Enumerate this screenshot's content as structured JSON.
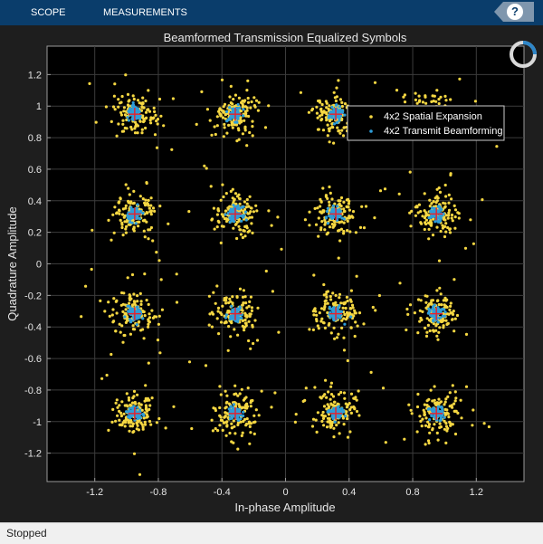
{
  "toolbar": {
    "tabs": [
      {
        "label": "SCOPE"
      },
      {
        "label": "MEASUREMENTS"
      }
    ],
    "help_label": "?"
  },
  "status": {
    "text": "Stopped"
  },
  "colors": {
    "background": "#1e1e1e",
    "axes_background": "#000000",
    "toolbar": "#0a3d6b",
    "series1": "#f5d742",
    "series2": "#2e9cd8",
    "reference": "#e8202a",
    "grid": "#3c3c3c",
    "text": "#e6e6e6"
  },
  "chart_data": {
    "type": "scatter",
    "title": "Beamformed Transmission Equalized Symbols",
    "xlabel": "In-phase Amplitude",
    "ylabel": "Quadrature Amplitude",
    "xlim": [
      -1.5,
      1.5
    ],
    "ylim": [
      -1.38,
      1.38
    ],
    "xticks": [
      -1.2,
      -0.8,
      -0.4,
      0,
      0.4,
      0.8,
      1.2
    ],
    "xtick_labels": [
      "-1.2",
      "-0.8",
      "-0.4",
      "0",
      "0.4",
      "0.8",
      "1.2"
    ],
    "yticks": [
      -1.2,
      -1,
      -0.8,
      -0.6,
      -0.4,
      -0.2,
      0,
      0.2,
      0.4,
      0.6,
      0.8,
      1,
      1.2
    ],
    "ytick_labels": [
      "-1.2",
      "-1",
      "-0.8",
      "-0.6",
      "-0.4",
      "-0.2",
      "0",
      "0.2",
      "0.4",
      "0.6",
      "0.8",
      "1",
      "1.2"
    ],
    "grid": true,
    "legend_position": "top-right",
    "reference_constellation": {
      "levels": [
        -0.9487,
        -0.3162,
        0.3162,
        0.9487
      ]
    },
    "series": [
      {
        "name": "4x2 Spatial Expansion",
        "spread": 0.065,
        "points_per_symbol": 130
      },
      {
        "name": "4x2 Transmit Beamforming",
        "spread": 0.022,
        "points_per_symbol": 70
      }
    ]
  }
}
